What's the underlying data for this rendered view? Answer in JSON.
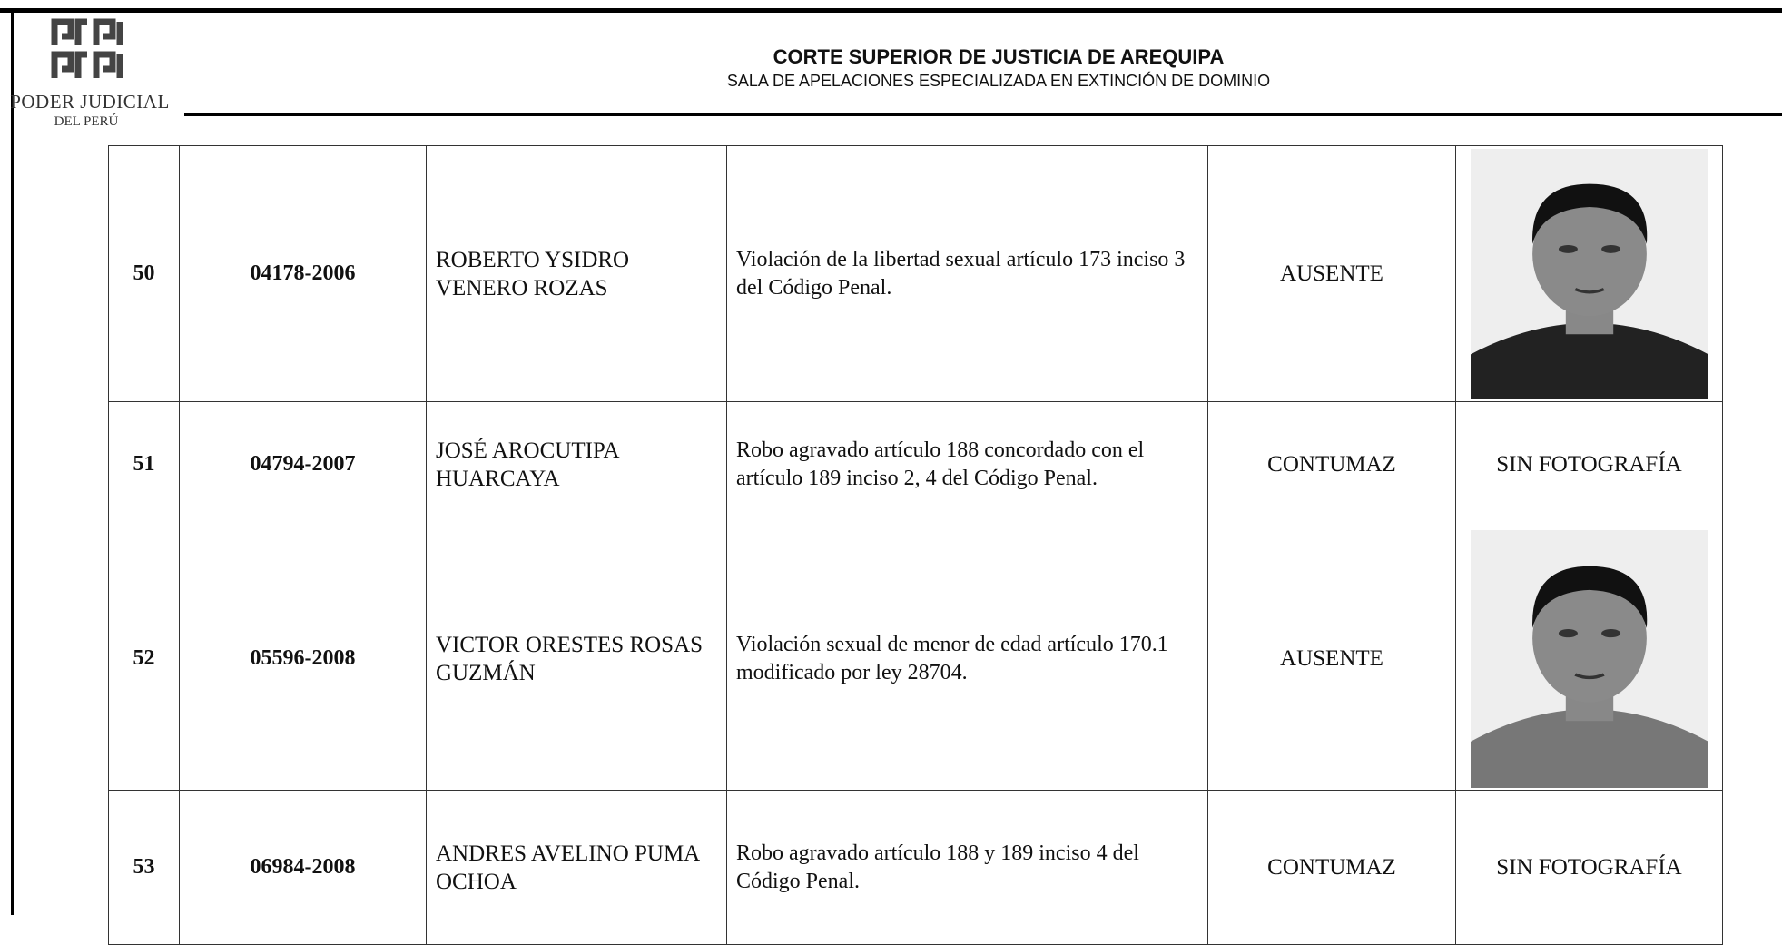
{
  "header": {
    "logo_line1": "PODER JUDICIAL",
    "logo_line2": "DEL PERÚ",
    "title": "CORTE SUPERIOR DE JUSTICIA DE AREQUIPA",
    "subtitle": "SALA DE APELACIONES ESPECIALIZADA EN EXTINCIÓN DE DOMINIO"
  },
  "table": {
    "rows": [
      {
        "number": "50",
        "case": "04178-2006",
        "name": "ROBERTO YSIDRO VENERO ROZAS",
        "offense": "Violación de la libertad sexual artículo 173 inciso 3 del Código Penal.",
        "status": "AUSENTE"
      },
      {
        "number": "51",
        "case": "04794-2007",
        "name": "JOSÉ AROCUTIPA HUARCAYA",
        "offense": "Robo agravado artículo 188 concordado con el artículo 189 inciso 2, 4 del Código Penal.",
        "status": "CONTUMAZ",
        "photo": "SIN FOTOGRAFÍA"
      },
      {
        "number": "52",
        "case": "05596-2008",
        "name": "VICTOR ORESTES ROSAS GUZMÁN",
        "offense": "Violación sexual de menor de edad artículo 170.1 modificado por ley 28704.",
        "status": "AUSENTE"
      },
      {
        "number": "53",
        "case": "06984-2008",
        "name": "ANDRES AVELINO PUMA OCHOA",
        "offense": "Robo agravado artículo 188 y 189 inciso 4 del Código Penal.",
        "status": "CONTUMAZ",
        "photo": "SIN FOTOGRAFÍA"
      }
    ]
  }
}
